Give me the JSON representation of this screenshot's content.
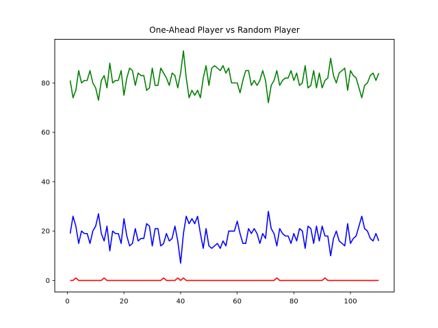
{
  "chart_data": {
    "type": "line",
    "title": "One-Ahead Player vs Random Player",
    "xlabel": "",
    "ylabel": "",
    "xlim": [
      -4.45,
      115.45
    ],
    "ylim": [
      -4.65,
      97.65
    ],
    "xticks": [
      0,
      20,
      40,
      60,
      80,
      100
    ],
    "yticks": [
      0,
      20,
      40,
      60,
      80
    ],
    "grid": false,
    "legend": "none",
    "x_start": 1,
    "series": [
      {
        "color": "#008000",
        "values": [
          81,
          74,
          77,
          85,
          80,
          81,
          81,
          85,
          80,
          78,
          73,
          81,
          83,
          78,
          88,
          80,
          81,
          81,
          85,
          75,
          82,
          86,
          85,
          79,
          84,
          83,
          83,
          77,
          78,
          86,
          79,
          79,
          86,
          84,
          82,
          79,
          84,
          83,
          78,
          84,
          93,
          82,
          74,
          77,
          75,
          77,
          74,
          82,
          87,
          79,
          86,
          87,
          86,
          85,
          87,
          84,
          86,
          80,
          80,
          80,
          76,
          81,
          85,
          85,
          79,
          81,
          79,
          81,
          85,
          81,
          72,
          79,
          81,
          85,
          79,
          81,
          82,
          82,
          85,
          81,
          84,
          79,
          80,
          87,
          78,
          79,
          85,
          78,
          84,
          78,
          81,
          82,
          90,
          83,
          80,
          84,
          85,
          86,
          77,
          85,
          83,
          82,
          78,
          74,
          79,
          80,
          83,
          84,
          81,
          84
        ]
      },
      {
        "color": "#0000ff",
        "values": [
          19,
          26,
          22,
          15,
          20,
          19,
          19,
          15,
          20,
          22,
          27,
          19,
          16,
          22,
          12,
          20,
          19,
          19,
          15,
          25,
          18,
          14,
          15,
          21,
          16,
          17,
          17,
          23,
          22,
          14,
          21,
          21,
          14,
          15,
          19,
          16,
          17,
          22,
          16,
          7,
          19,
          26,
          23,
          25,
          23,
          26,
          19,
          13,
          21,
          14,
          13,
          14,
          15,
          13,
          16,
          14,
          20,
          20,
          20,
          24,
          19,
          15,
          15,
          21,
          19,
          21,
          19,
          15,
          19,
          17,
          28,
          21,
          19,
          14,
          21,
          19,
          18,
          18,
          15,
          19,
          16,
          21,
          20,
          13,
          22,
          21,
          15,
          22,
          16,
          22,
          18,
          18,
          10,
          17,
          20,
          16,
          15,
          14,
          23,
          15,
          17,
          18,
          22,
          26,
          21,
          20,
          17,
          16,
          19,
          16
        ]
      },
      {
        "color": "#ff0000",
        "values": [
          0,
          0,
          1,
          0,
          0,
          0,
          0,
          0,
          0,
          0,
          0,
          0,
          1,
          0,
          0,
          0,
          0,
          0,
          0,
          0,
          0,
          0,
          0,
          0,
          0,
          0,
          0,
          0,
          0,
          0,
          0,
          0,
          0,
          1,
          0,
          0,
          0,
          0,
          1,
          0,
          1,
          0,
          0,
          0,
          0,
          0,
          0,
          0,
          0,
          0,
          0,
          0,
          0,
          0,
          0,
          0,
          0,
          0,
          0,
          0,
          0,
          0,
          0,
          0,
          0,
          0,
          0,
          0,
          0,
          0,
          0,
          0,
          0,
          1,
          0,
          0,
          0,
          0,
          0,
          0,
          0,
          0,
          0,
          0,
          0,
          0,
          0,
          0,
          0,
          0,
          1,
          0,
          0,
          0,
          0,
          0,
          0,
          0,
          0,
          0,
          0,
          0,
          0,
          0,
          0,
          0,
          0,
          0,
          0,
          0
        ]
      }
    ]
  }
}
